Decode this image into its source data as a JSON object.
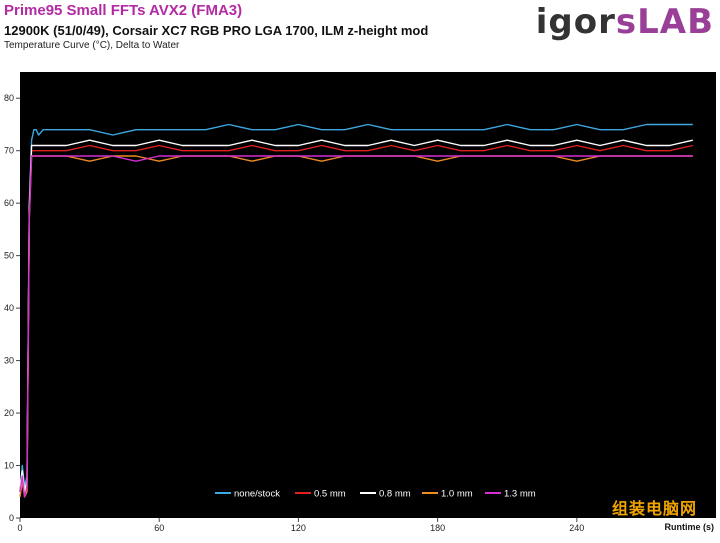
{
  "header": {
    "title": "Prime95 Small FFTs AVX2 (FMA3)",
    "subtitle": "12900K (51/0/49), Corsair XC7 RGB PRO LGA 1700, ILM z-height mod",
    "caption": "Temperature Curve (°C), Delta to Water",
    "logo_text": "igorsLAB"
  },
  "watermark": "组装电脑网",
  "chart_data": {
    "type": "line",
    "title": "Prime95 Small FFTs AVX2 (FMA3)",
    "subtitle": "12900K (51/0/49), Corsair XC7 RGB PRO LGA 1700, ILM z-height mod",
    "ylabel": "Temperature Curve (°C), Delta to Water",
    "xlabel": "Runtime (s)",
    "xlim": [
      0,
      300
    ],
    "ylim": [
      0,
      85
    ],
    "xticks": [
      0,
      60,
      120,
      180,
      240
    ],
    "yticks": [
      0,
      10,
      20,
      30,
      40,
      50,
      60,
      70,
      80
    ],
    "grid": false,
    "background": "#000000",
    "legend_position": "bottom-center",
    "series": [
      {
        "name": "none/stock",
        "color": "#3ea7e0",
        "x": [
          0,
          1,
          2,
          3,
          4,
          5,
          6,
          7,
          8,
          10,
          20,
          30,
          40,
          50,
          60,
          70,
          80,
          90,
          100,
          110,
          120,
          130,
          140,
          150,
          160,
          170,
          180,
          190,
          200,
          210,
          220,
          230,
          240,
          250,
          260,
          270,
          280,
          290
        ],
        "values": [
          5,
          10,
          6,
          8,
          60,
          72,
          74,
          74,
          73,
          74,
          74,
          74,
          73,
          74,
          74,
          74,
          74,
          75,
          74,
          74,
          75,
          74,
          74,
          75,
          74,
          74,
          74,
          74,
          74,
          75,
          74,
          74,
          75,
          74,
          74,
          75,
          75,
          75
        ]
      },
      {
        "name": "0.5 mm",
        "color": "#e0201c",
        "x": [
          0,
          1,
          2,
          3,
          4,
          5,
          6,
          7,
          8,
          10,
          20,
          30,
          40,
          50,
          60,
          70,
          80,
          90,
          100,
          110,
          120,
          130,
          140,
          150,
          160,
          170,
          180,
          190,
          200,
          210,
          220,
          230,
          240,
          250,
          260,
          270,
          280,
          290
        ],
        "values": [
          5,
          8,
          5,
          6,
          58,
          70,
          70,
          70,
          70,
          70,
          70,
          71,
          70,
          70,
          71,
          70,
          70,
          70,
          71,
          70,
          70,
          71,
          70,
          70,
          71,
          70,
          71,
          70,
          70,
          71,
          70,
          70,
          71,
          70,
          71,
          70,
          70,
          71
        ]
      },
      {
        "name": "0.8 mm",
        "color": "#ffffff",
        "x": [
          0,
          1,
          2,
          3,
          4,
          5,
          6,
          7,
          8,
          10,
          20,
          30,
          40,
          50,
          60,
          70,
          80,
          90,
          100,
          110,
          120,
          130,
          140,
          150,
          160,
          170,
          180,
          190,
          200,
          210,
          220,
          230,
          240,
          250,
          260,
          270,
          280,
          290
        ],
        "values": [
          6,
          9,
          5,
          7,
          59,
          71,
          71,
          71,
          71,
          71,
          71,
          72,
          71,
          71,
          72,
          71,
          71,
          71,
          72,
          71,
          71,
          72,
          71,
          71,
          72,
          71,
          72,
          71,
          71,
          72,
          71,
          71,
          72,
          71,
          72,
          71,
          71,
          72
        ]
      },
      {
        "name": "1.0 mm",
        "color": "#f08a24",
        "x": [
          0,
          1,
          2,
          3,
          4,
          5,
          6,
          7,
          8,
          10,
          20,
          30,
          40,
          50,
          60,
          70,
          80,
          90,
          100,
          110,
          120,
          130,
          140,
          150,
          160,
          170,
          180,
          190,
          200,
          210,
          220,
          230,
          240,
          250,
          260,
          270,
          280,
          290
        ],
        "values": [
          4,
          7,
          4,
          5,
          57,
          69,
          69,
          69,
          69,
          69,
          69,
          68,
          69,
          69,
          68,
          69,
          69,
          69,
          68,
          69,
          69,
          68,
          69,
          69,
          69,
          69,
          68,
          69,
          69,
          69,
          69,
          69,
          68,
          69,
          69,
          69,
          69,
          69
        ]
      },
      {
        "name": "1.3 mm",
        "color": "#d42fd0",
        "x": [
          0,
          1,
          2,
          3,
          4,
          5,
          6,
          7,
          8,
          10,
          20,
          30,
          40,
          50,
          60,
          70,
          80,
          90,
          100,
          110,
          120,
          130,
          140,
          150,
          160,
          170,
          180,
          190,
          200,
          210,
          220,
          230,
          240,
          250,
          260,
          270,
          280,
          290
        ],
        "values": [
          5,
          8,
          4,
          6,
          57,
          69,
          69,
          69,
          69,
          69,
          69,
          69,
          69,
          68,
          69,
          69,
          69,
          69,
          69,
          69,
          69,
          69,
          69,
          69,
          69,
          69,
          69,
          69,
          69,
          69,
          69,
          69,
          69,
          69,
          69,
          69,
          69,
          69
        ]
      }
    ]
  }
}
